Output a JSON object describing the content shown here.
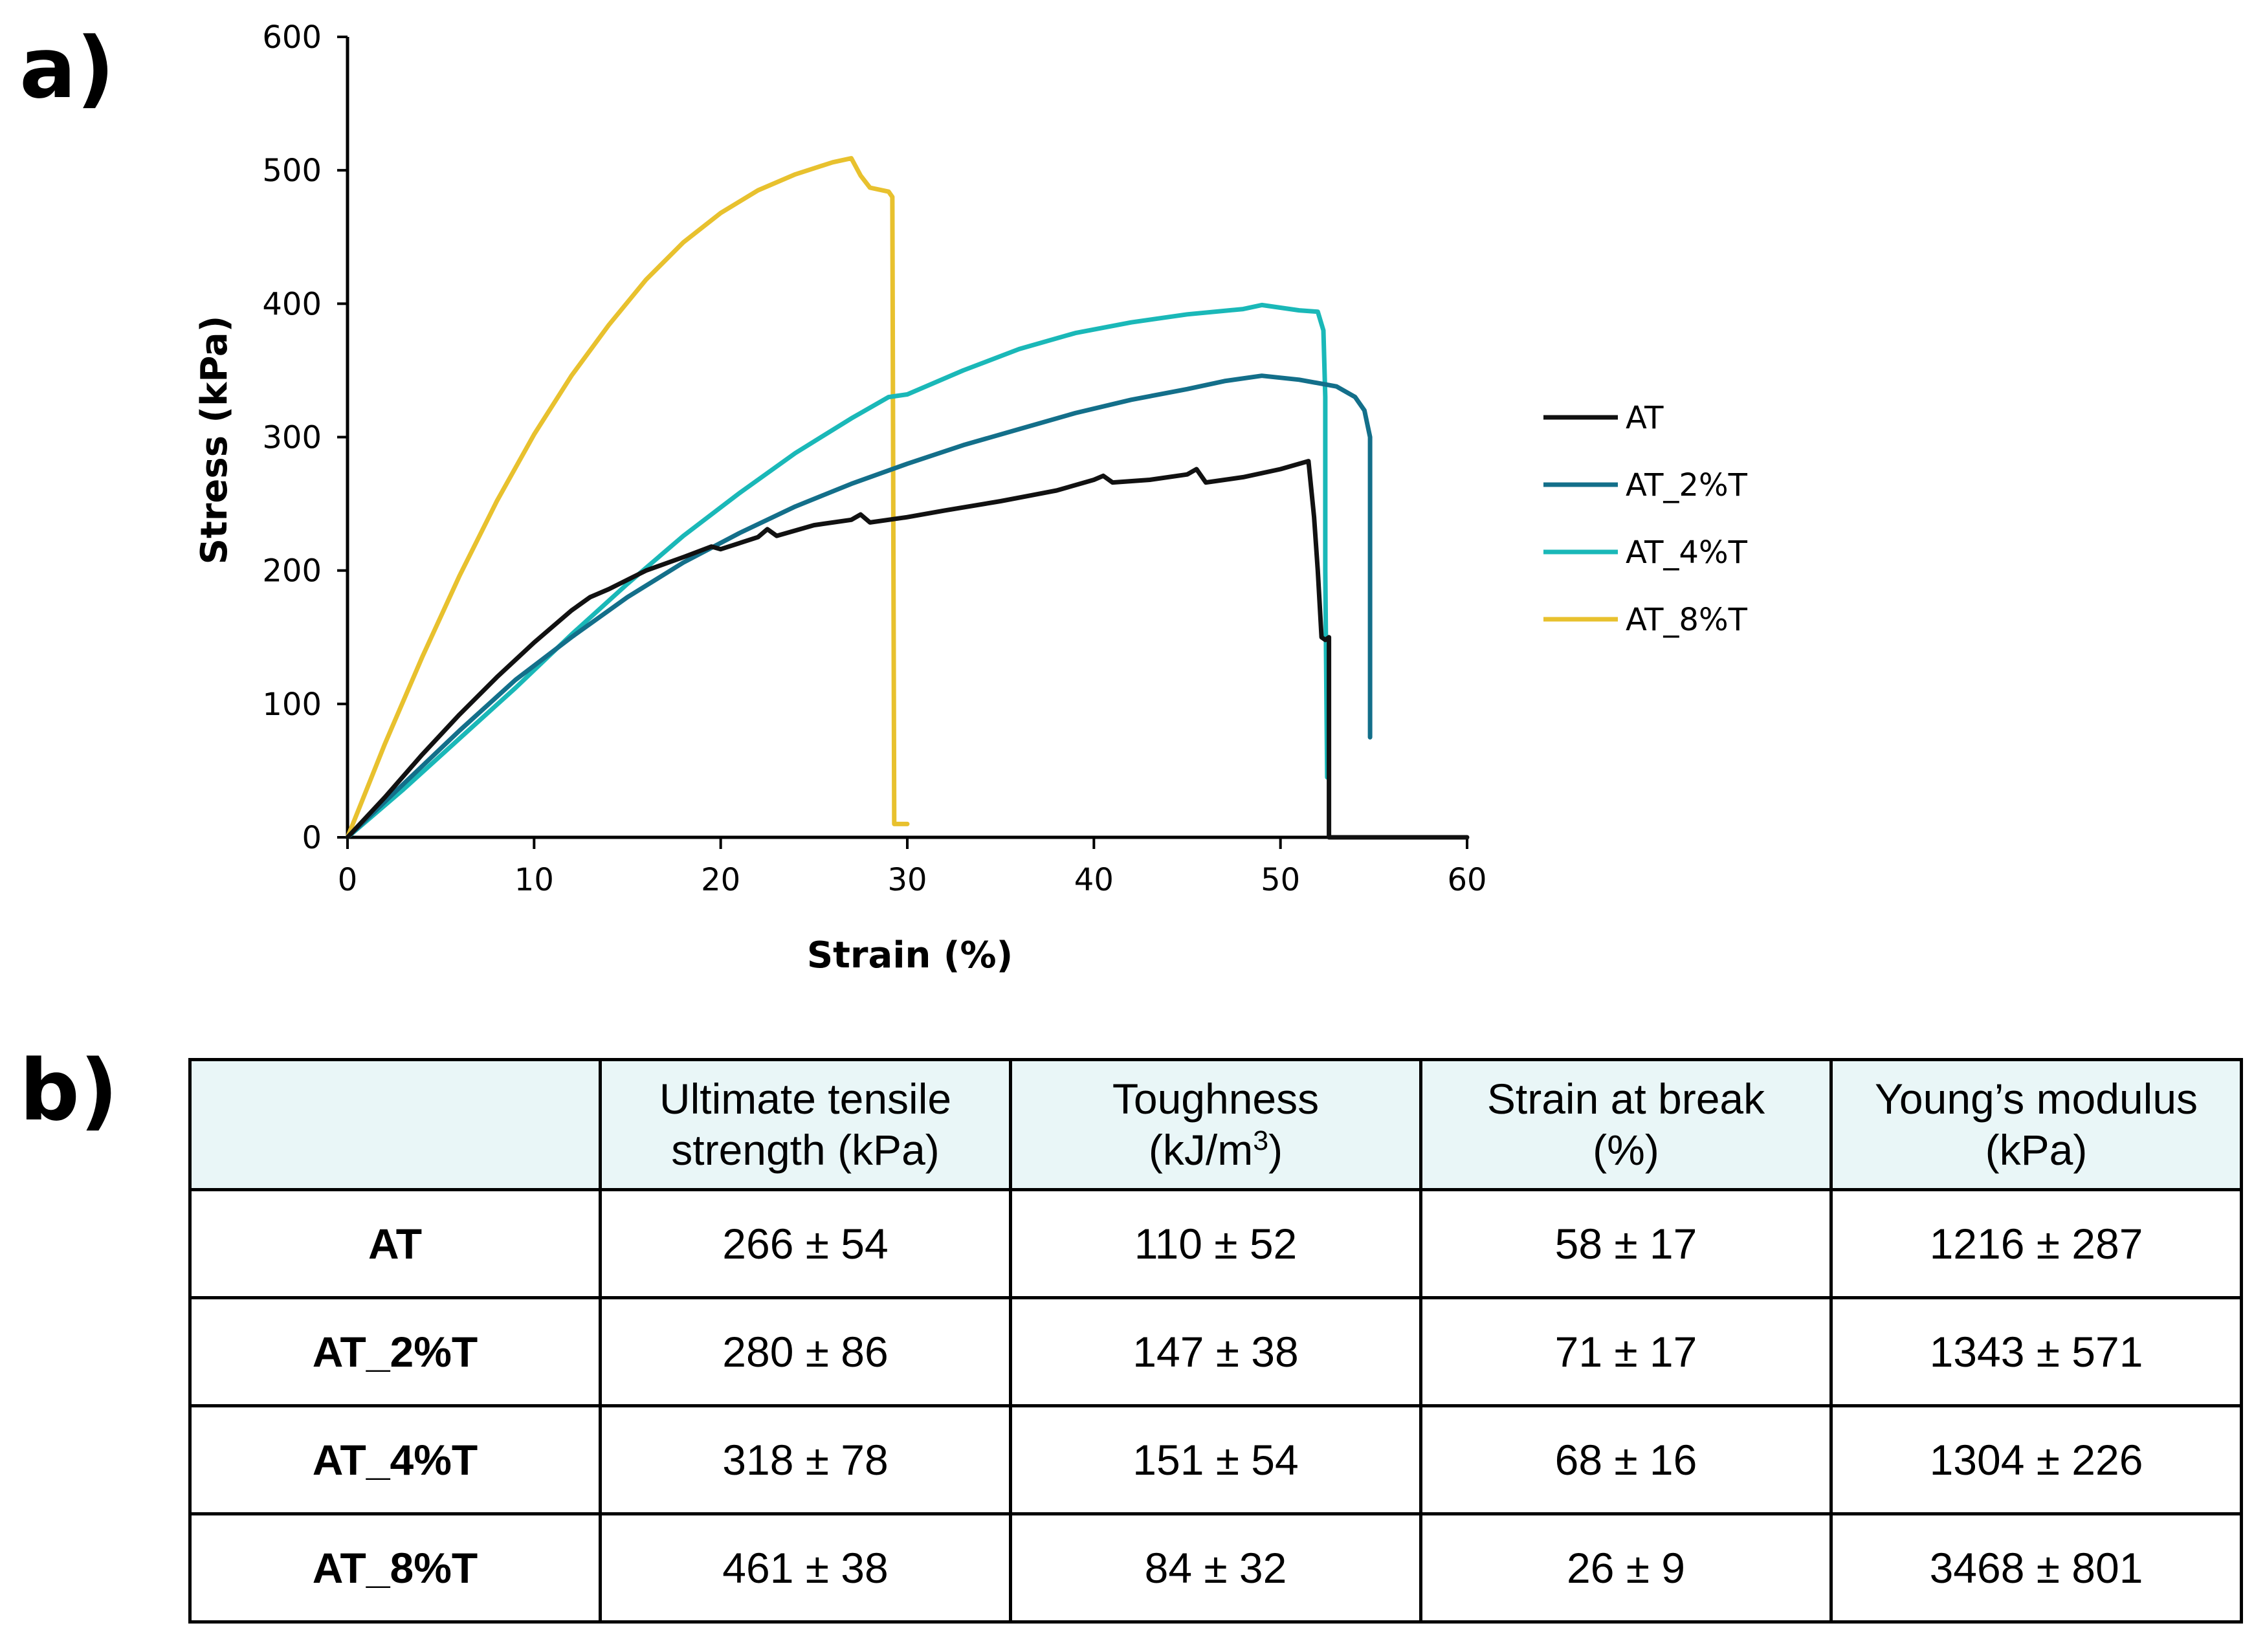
{
  "panel_labels": {
    "a": "a)",
    "b": "b)"
  },
  "chart_data": {
    "type": "line",
    "title": "",
    "xlabel": "Strain (%)",
    "ylabel": "Stress (kPa)",
    "xlim": [
      0,
      60
    ],
    "ylim": [
      0,
      600
    ],
    "x_ticks": [
      0,
      10,
      20,
      30,
      40,
      50,
      60
    ],
    "y_ticks": [
      0,
      100,
      200,
      300,
      400,
      500,
      600
    ],
    "grid": false,
    "legend_position": "right",
    "series": [
      {
        "name": "AT",
        "color": "#111111",
        "points": [
          [
            0,
            0
          ],
          [
            2,
            30
          ],
          [
            4,
            62
          ],
          [
            6,
            92
          ],
          [
            8,
            120
          ],
          [
            10,
            146
          ],
          [
            12,
            170
          ],
          [
            13,
            180
          ],
          [
            14,
            186
          ],
          [
            16,
            200
          ],
          [
            18,
            210
          ],
          [
            19.5,
            218
          ],
          [
            20,
            216
          ],
          [
            22,
            225
          ],
          [
            22.5,
            231
          ],
          [
            23,
            226
          ],
          [
            25,
            234
          ],
          [
            27,
            238
          ],
          [
            27.5,
            242
          ],
          [
            28,
            236
          ],
          [
            30,
            240
          ],
          [
            32,
            245
          ],
          [
            35,
            252
          ],
          [
            38,
            260
          ],
          [
            40,
            268
          ],
          [
            40.5,
            271
          ],
          [
            41,
            266
          ],
          [
            43,
            268
          ],
          [
            45,
            272
          ],
          [
            45.5,
            276
          ],
          [
            46,
            266
          ],
          [
            48,
            270
          ],
          [
            50,
            276
          ],
          [
            51.5,
            282
          ],
          [
            51.8,
            240
          ],
          [
            52,
            200
          ],
          [
            52.2,
            150
          ],
          [
            52.4,
            148
          ],
          [
            52.6,
            150
          ],
          [
            52.6,
            0
          ],
          [
            60,
            0
          ]
        ]
      },
      {
        "name": "AT_2%T",
        "color": "#136f8a",
        "points": [
          [
            0,
            0
          ],
          [
            3,
            40
          ],
          [
            6,
            80
          ],
          [
            9,
            118
          ],
          [
            12,
            150
          ],
          [
            15,
            180
          ],
          [
            18,
            206
          ],
          [
            21,
            228
          ],
          [
            24,
            248
          ],
          [
            27,
            265
          ],
          [
            30,
            280
          ],
          [
            33,
            294
          ],
          [
            36,
            306
          ],
          [
            39,
            318
          ],
          [
            42,
            328
          ],
          [
            45,
            336
          ],
          [
            47,
            342
          ],
          [
            49,
            346
          ],
          [
            51,
            343
          ],
          [
            53,
            338
          ],
          [
            54,
            330
          ],
          [
            54.5,
            320
          ],
          [
            54.8,
            300
          ],
          [
            54.8,
            75
          ]
        ]
      },
      {
        "name": "AT_4%T",
        "color": "#1ab8b8",
        "points": [
          [
            0,
            0
          ],
          [
            3,
            36
          ],
          [
            6,
            74
          ],
          [
            9,
            112
          ],
          [
            12,
            152
          ],
          [
            15,
            190
          ],
          [
            18,
            226
          ],
          [
            21,
            258
          ],
          [
            24,
            288
          ],
          [
            27,
            314
          ],
          [
            29,
            330
          ],
          [
            30,
            332
          ],
          [
            33,
            350
          ],
          [
            36,
            366
          ],
          [
            39,
            378
          ],
          [
            42,
            386
          ],
          [
            45,
            392
          ],
          [
            48,
            396
          ],
          [
            49,
            399
          ],
          [
            51,
            395
          ],
          [
            52,
            394
          ],
          [
            52.3,
            380
          ],
          [
            52.4,
            330
          ],
          [
            52.4,
            200
          ],
          [
            52.5,
            45
          ]
        ]
      },
      {
        "name": "AT_8%T",
        "color": "#e8c12e",
        "points": [
          [
            0,
            0
          ],
          [
            2,
            70
          ],
          [
            4,
            135
          ],
          [
            6,
            196
          ],
          [
            8,
            252
          ],
          [
            10,
            302
          ],
          [
            12,
            346
          ],
          [
            14,
            384
          ],
          [
            16,
            418
          ],
          [
            18,
            446
          ],
          [
            20,
            468
          ],
          [
            22,
            485
          ],
          [
            24,
            497
          ],
          [
            26,
            506
          ],
          [
            27,
            509
          ],
          [
            27.5,
            496
          ],
          [
            28,
            487
          ],
          [
            29,
            484
          ],
          [
            29.2,
            480
          ],
          [
            29.3,
            10
          ],
          [
            30,
            10
          ]
        ]
      }
    ]
  },
  "table": {
    "headers": [
      "",
      {
        "line1": "Ultimate tensile",
        "line2": "strength (kPa)"
      },
      {
        "line1": "Toughness",
        "line2_pre": "(kJ/m",
        "line2_sup": "3",
        "line2_post": ")"
      },
      {
        "line1": "Strain at break",
        "line2": "(%)"
      },
      {
        "line1": "Young’s modulus",
        "line2": "(kPa)"
      }
    ],
    "rows": [
      {
        "label": "AT",
        "values": [
          "266 ± 54",
          "110 ± 52",
          "58 ± 17",
          "1216 ± 287"
        ]
      },
      {
        "label": "AT_2%T",
        "values": [
          "280 ± 86",
          "147 ± 38",
          "71 ± 17",
          "1343 ± 571"
        ]
      },
      {
        "label": "AT_4%T",
        "values": [
          "318 ± 78",
          "151 ± 54",
          "68 ± 16",
          "1304 ± 226"
        ]
      },
      {
        "label": "AT_8%T",
        "values": [
          "461 ± 38",
          "84 ± 32",
          "26 ± 9",
          "3468 ± 801"
        ]
      }
    ]
  }
}
